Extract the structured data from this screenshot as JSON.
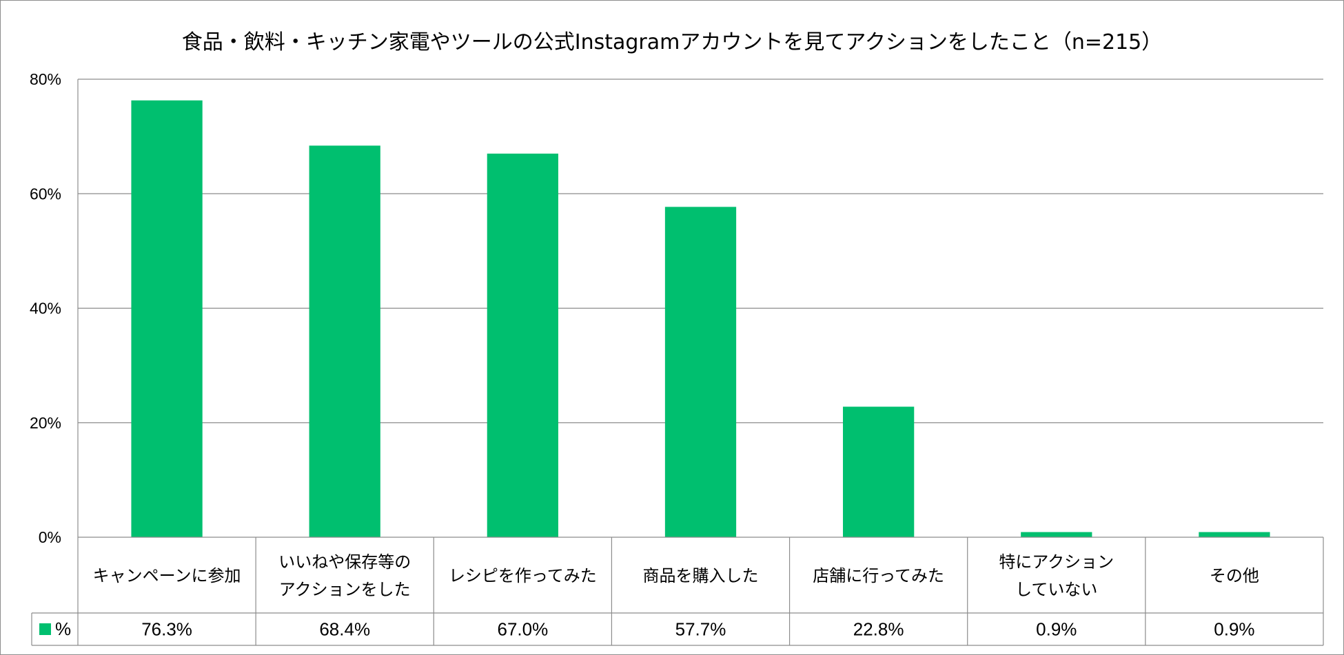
{
  "chart_data": {
    "type": "bar",
    "title": "食品・飲料・キッチン家電やツールの公式Instagramアカウントを見てアクションをしたこと（n=215）",
    "categories": [
      [
        "キャンペーンに参加"
      ],
      [
        "いいねや保存等の",
        "アクションをした"
      ],
      [
        "レシピを作ってみた"
      ],
      [
        "商品を購入した"
      ],
      [
        "店舗に行ってみた"
      ],
      [
        "特にアクション",
        "していない"
      ],
      [
        "その他"
      ]
    ],
    "series": [
      {
        "name": "%",
        "color": "#00bf6f",
        "values": [
          76.3,
          68.4,
          67.0,
          57.7,
          22.8,
          0.9,
          0.9
        ],
        "labels": [
          "76.3%",
          "68.4%",
          "67.0%",
          "57.7%",
          "22.8%",
          "0.9%",
          "0.9%"
        ]
      }
    ],
    "ylim": [
      0,
      80
    ],
    "yticks": [
      0,
      20,
      40,
      60,
      80
    ],
    "ytick_labels": [
      "0%",
      "20%",
      "40%",
      "60%",
      "80%"
    ],
    "grid": true,
    "legend": "data-table-left",
    "data_table": true
  }
}
